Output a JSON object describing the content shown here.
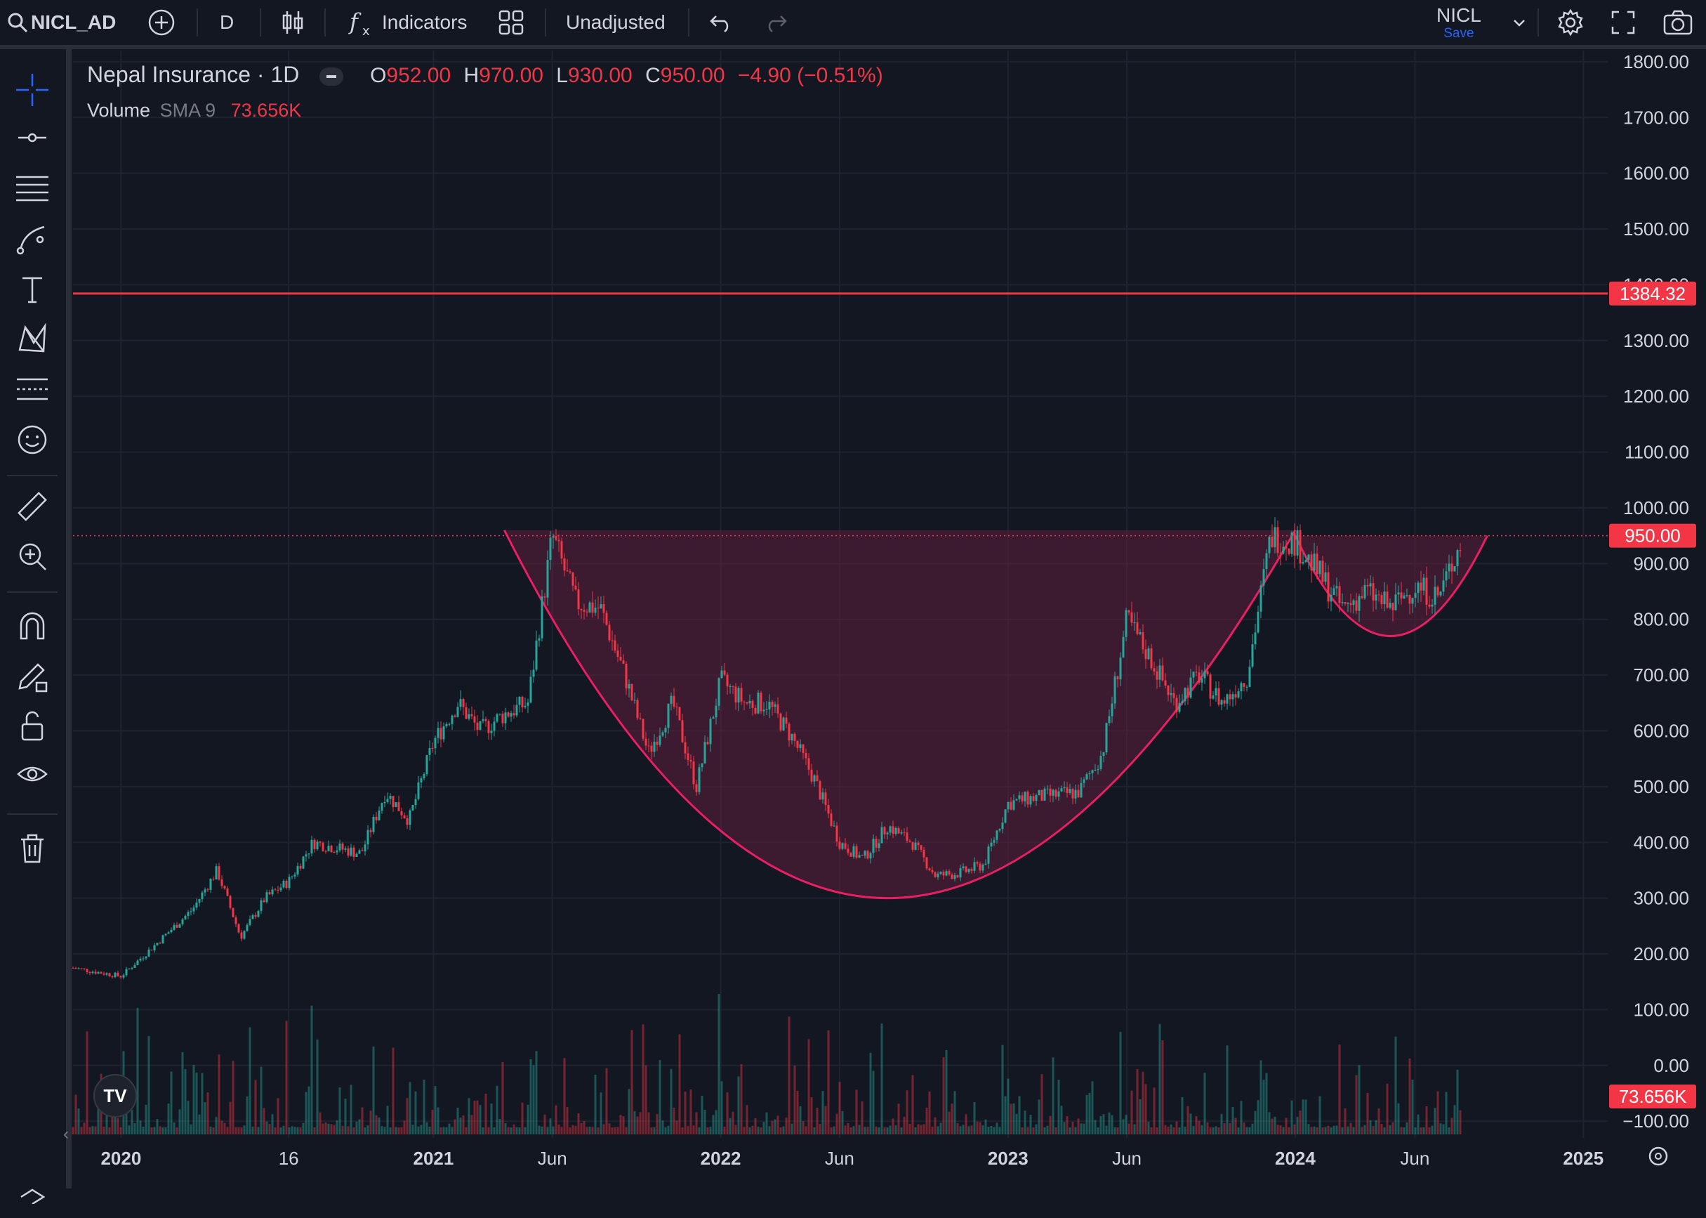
{
  "toolbar": {
    "symbol": "NICL_AD",
    "interval": "D",
    "indicators_label": "Indicators",
    "adjustment": "Unadjusted",
    "layout_name": "NICL",
    "save_label": "Save"
  },
  "left_tools": [
    "crosshair-icon",
    "horizontal-line-icon",
    "fib-retracement-icon",
    "brush-icon",
    "text-icon",
    "pattern-icon",
    "prediction-icon",
    "emoji-icon",
    "ruler-icon",
    "zoom-in-icon",
    "magnet-icon",
    "lock-drawing-icon",
    "unlock-icon",
    "eye-icon",
    "trash-icon"
  ],
  "legend": {
    "title": "Nepal Insurance · 1D",
    "o_label": "O",
    "o_value": "952.00",
    "h_label": "H",
    "h_value": "970.00",
    "l_label": "L",
    "l_value": "930.00",
    "c_label": "C",
    "c_value": "950.00",
    "change": "−4.90 (−0.51%)",
    "volume_label": "Volume",
    "sma_label": "SMA 9",
    "volume_value": "73.656K"
  },
  "colors": {
    "background": "#131722",
    "up": "#26a69a",
    "down": "#f23645",
    "pattern_fill": "#5e1f3c",
    "pattern_stroke": "#e91e63",
    "hline": "#f23645"
  },
  "chart_data": {
    "type": "candlestick",
    "title": "Nepal Insurance · 1D",
    "y_ticks": [
      "1800.00",
      "1700.00",
      "1600.00",
      "1500.00",
      "1400.00",
      "1300.00",
      "1200.00",
      "1100.00",
      "1000.00",
      "900.00",
      "800.00",
      "700.00",
      "600.00",
      "500.00",
      "400.00",
      "300.00",
      "200.00",
      "100.00",
      "0.00",
      "−100.00"
    ],
    "y_range": [
      -130,
      1820
    ],
    "x_ticks": [
      "2020",
      "16",
      "2021",
      "Jun",
      "2022",
      "Jun",
      "2023",
      "Jun",
      "2024",
      "Jun",
      "2025"
    ],
    "horizontal_line": {
      "value": 1384.32,
      "label": "1384.32"
    },
    "last_price": {
      "value": 950.0,
      "label": "950.00"
    },
    "volume_label": "73.656K",
    "price_path": [
      {
        "date": "2019-10",
        "close": 175
      },
      {
        "date": "2019-12",
        "close": 160
      },
      {
        "date": "2020-01",
        "close": 200
      },
      {
        "date": "2020-03",
        "close": 280
      },
      {
        "date": "2020-04",
        "close": 350
      },
      {
        "date": "2020-05",
        "close": 230
      },
      {
        "date": "2020-06",
        "close": 300
      },
      {
        "date": "2020-07",
        "close": 330
      },
      {
        "date": "2020-08",
        "close": 400
      },
      {
        "date": "2020-10",
        "close": 380
      },
      {
        "date": "2020-11",
        "close": 490
      },
      {
        "date": "2020-12",
        "close": 440
      },
      {
        "date": "2021-01",
        "close": 580
      },
      {
        "date": "2021-02",
        "close": 650
      },
      {
        "date": "2021-03",
        "close": 600
      },
      {
        "date": "2021-04",
        "close": 630
      },
      {
        "date": "2021-05",
        "close": 650
      },
      {
        "date": "2021-06",
        "close": 950
      },
      {
        "date": "2021-07",
        "close": 830
      },
      {
        "date": "2021-08",
        "close": 820
      },
      {
        "date": "2021-09",
        "close": 700
      },
      {
        "date": "2021-10",
        "close": 560
      },
      {
        "date": "2021-11",
        "close": 650
      },
      {
        "date": "2021-12",
        "close": 500
      },
      {
        "date": "2022-01",
        "close": 690
      },
      {
        "date": "2022-02",
        "close": 650
      },
      {
        "date": "2022-03",
        "close": 650
      },
      {
        "date": "2022-04",
        "close": 590
      },
      {
        "date": "2022-05",
        "close": 510
      },
      {
        "date": "2022-06",
        "close": 400
      },
      {
        "date": "2022-07",
        "close": 370
      },
      {
        "date": "2022-08",
        "close": 430
      },
      {
        "date": "2022-09",
        "close": 400
      },
      {
        "date": "2022-10",
        "close": 340
      },
      {
        "date": "2022-11",
        "close": 345
      },
      {
        "date": "2022-12",
        "close": 360
      },
      {
        "date": "2023-01",
        "close": 470
      },
      {
        "date": "2023-02",
        "close": 480
      },
      {
        "date": "2023-04",
        "close": 490
      },
      {
        "date": "2023-05",
        "close": 560
      },
      {
        "date": "2023-06",
        "close": 800
      },
      {
        "date": "2023-07",
        "close": 730
      },
      {
        "date": "2023-08",
        "close": 650
      },
      {
        "date": "2023-09",
        "close": 700
      },
      {
        "date": "2023-10",
        "close": 650
      },
      {
        "date": "2023-11",
        "close": 700
      },
      {
        "date": "2023-12",
        "close": 950
      },
      {
        "date": "2024-01",
        "close": 940
      },
      {
        "date": "2024-02",
        "close": 880
      },
      {
        "date": "2024-03",
        "close": 820
      },
      {
        "date": "2024-04",
        "close": 850
      },
      {
        "date": "2024-05",
        "close": 820
      },
      {
        "date": "2024-06",
        "close": 860
      },
      {
        "date": "2024-07",
        "close": 840
      },
      {
        "date": "2024-08",
        "close": 950
      }
    ],
    "cup": {
      "left_top": {
        "date": "2021-04",
        "value": 960
      },
      "right_top": {
        "date": "2024-01",
        "value": 960
      },
      "bottom": {
        "date": "2022-08",
        "value": 300
      }
    },
    "handle": {
      "left_top": {
        "date": "2024-01",
        "value": 950
      },
      "right_top": {
        "date": "2024-09",
        "value": 950
      },
      "bottom": {
        "date": "2024-05",
        "value": 770
      }
    }
  }
}
